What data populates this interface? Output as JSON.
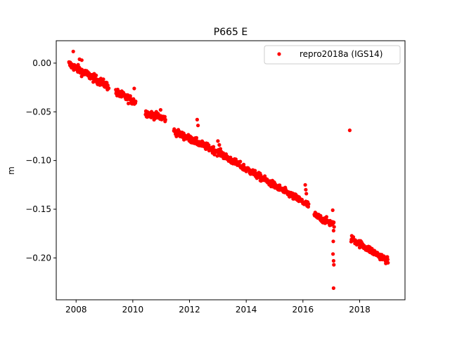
{
  "chart_data": {
    "type": "scatter",
    "title": "P665 E",
    "xlabel": "",
    "ylabel": "m",
    "xlim": [
      2007.3,
      2019.6
    ],
    "ylim": [
      -0.243,
      0.023
    ],
    "xticks": [
      2008,
      2010,
      2012,
      2014,
      2016,
      2018
    ],
    "xtick_labels": [
      "2008",
      "2010",
      "2012",
      "2014",
      "2016",
      "2018"
    ],
    "yticks": [
      0.0,
      -0.05,
      -0.1,
      -0.15,
      -0.2
    ],
    "ytick_labels": [
      "0.00",
      "−0.05",
      "−0.10",
      "−0.15",
      "−0.20"
    ],
    "legend_position": "top-right",
    "grid": false,
    "series": [
      {
        "name": "repro2018a (IGS14)",
        "color": "#ff0000",
        "marker": "circle",
        "segments": [
          {
            "x0": 2007.75,
            "x1": 2009.15,
            "y0": -0.001,
            "y1": -0.024,
            "noise": 0.0035
          },
          {
            "x0": 2009.4,
            "x1": 2010.1,
            "y0": -0.03,
            "y1": -0.04,
            "noise": 0.0035
          },
          {
            "x0": 2010.45,
            "x1": 2011.15,
            "y0": -0.051,
            "y1": -0.057,
            "noise": 0.003
          },
          {
            "x0": 2011.45,
            "x1": 2013.2,
            "y0": -0.07,
            "y1": -0.094,
            "noise": 0.003
          },
          {
            "x0": 2013.2,
            "x1": 2016.2,
            "y0": -0.095,
            "y1": -0.146,
            "noise": 0.003
          },
          {
            "x0": 2016.4,
            "x1": 2017.1,
            "y0": -0.156,
            "y1": -0.166,
            "noise": 0.003
          },
          {
            "x0": 2017.7,
            "x1": 2019.0,
            "y0": -0.18,
            "y1": -0.203,
            "noise": 0.003
          }
        ],
        "extra_points": [
          {
            "x": 2007.9,
            "y": 0.012
          },
          {
            "x": 2008.12,
            "y": 0.004
          },
          {
            "x": 2008.2,
            "y": 0.003
          },
          {
            "x": 2010.05,
            "y": -0.026
          },
          {
            "x": 2010.98,
            "y": -0.048
          },
          {
            "x": 2012.27,
            "y": -0.058
          },
          {
            "x": 2012.3,
            "y": -0.064
          },
          {
            "x": 2013.0,
            "y": -0.08
          },
          {
            "x": 2013.05,
            "y": -0.084
          },
          {
            "x": 2016.08,
            "y": -0.125
          },
          {
            "x": 2016.1,
            "y": -0.13
          },
          {
            "x": 2016.12,
            "y": -0.134
          },
          {
            "x": 2017.05,
            "y": -0.151
          },
          {
            "x": 2017.08,
            "y": -0.172
          },
          {
            "x": 2017.07,
            "y": -0.183
          },
          {
            "x": 2017.06,
            "y": -0.196
          },
          {
            "x": 2017.08,
            "y": -0.203
          },
          {
            "x": 2017.09,
            "y": -0.207
          },
          {
            "x": 2017.08,
            "y": -0.231
          },
          {
            "x": 2017.65,
            "y": -0.069
          }
        ]
      }
    ]
  }
}
